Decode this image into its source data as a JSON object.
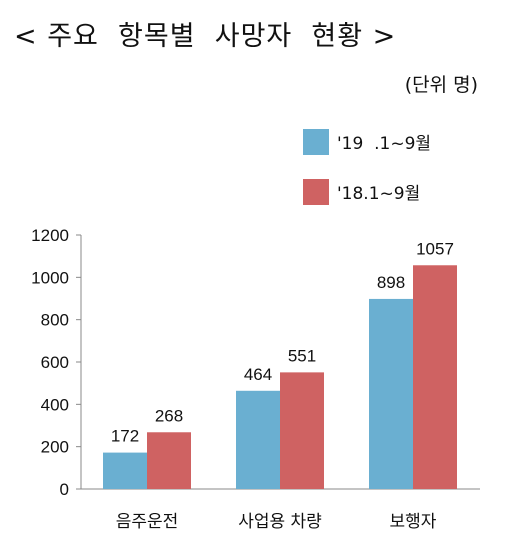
{
  "title": "< 주요  항목별  사망자  현황 >",
  "unit_label": "(단위 명)",
  "chart_data": {
    "type": "bar",
    "title": "< 주요  항목별  사망자  현황 >",
    "xlabel": "",
    "ylabel": "",
    "categories": [
      "음주운전",
      "사업용 차량",
      "보행자"
    ],
    "series": [
      {
        "name": "'19  .1~9월",
        "values": [
          172,
          464,
          898
        ],
        "color": "#6aafd1"
      },
      {
        "name": "'18.1~9월",
        "values": [
          268,
          551,
          1057
        ],
        "color": "#cf6262"
      }
    ],
    "ylim": [
      0,
      1200
    ],
    "yticks": [
      0,
      200,
      400,
      600,
      800,
      1000,
      1200
    ],
    "grid": false,
    "legend": "top-right"
  }
}
